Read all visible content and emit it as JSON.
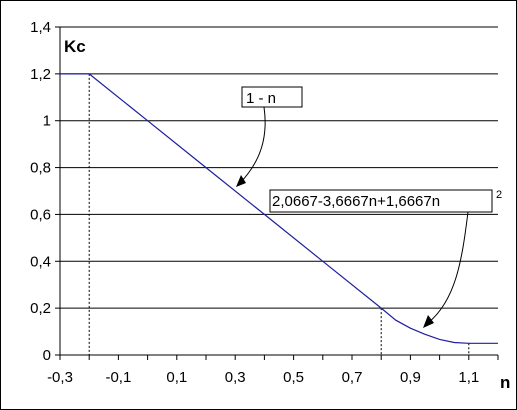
{
  "chart_data": {
    "type": "line",
    "ylabel": "Kc",
    "xlabel": "n",
    "xlim": [
      -0.3,
      1.2
    ],
    "ylim": [
      0,
      1.4
    ],
    "x_ticks": [
      "-0,3",
      "-0,1",
      "0,1",
      "0,3",
      "0,5",
      "0,7",
      "0,9",
      "1,1"
    ],
    "y_ticks": [
      "0",
      "0,2",
      "0,4",
      "0,6",
      "0,8",
      "1",
      "1,2",
      "1,4"
    ],
    "x_tick_values": [
      -0.3,
      -0.1,
      0.1,
      0.3,
      0.5,
      0.7,
      0.9,
      1.1
    ],
    "y_tick_values": [
      0,
      0.2,
      0.4,
      0.6,
      0.8,
      1.0,
      1.2,
      1.4
    ],
    "grid": "horizontal",
    "series": [
      {
        "color": "#1f1fa0",
        "x": [
          -0.3,
          -0.2,
          0.0,
          0.2,
          0.4,
          0.6,
          0.8,
          0.85,
          0.9,
          0.95,
          1.0,
          1.05,
          1.1,
          1.2
        ],
        "y": [
          1.2,
          1.2,
          1.0,
          0.8,
          0.6,
          0.4,
          0.2,
          0.1487,
          0.1143,
          0.0883,
          0.0667,
          0.0534,
          0.05,
          0.05
        ]
      }
    ],
    "dotted_markers_x": [
      -0.2,
      0.8,
      1.1
    ],
    "annotations": {
      "linear": "1 - n",
      "quadratic": "2,0667-3,6667n+1,6667n",
      "quadratic_sup": "2"
    }
  }
}
